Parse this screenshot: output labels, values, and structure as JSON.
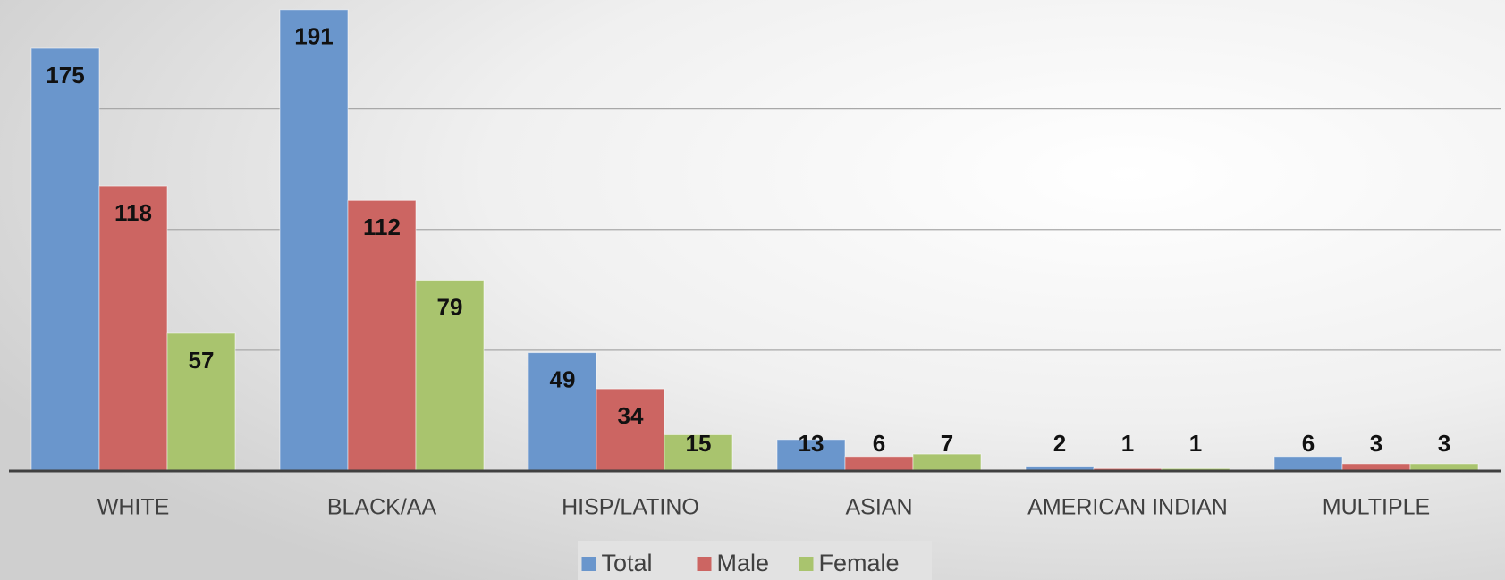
{
  "chart_data": {
    "type": "bar",
    "categories": [
      "WHITE",
      "BLACK/AA",
      "HISP/LATINO",
      "ASIAN",
      "AMERICAN INDIAN",
      "MULTIPLE"
    ],
    "series": [
      {
        "name": "Total",
        "color": "#6a96cc",
        "values": [
          175,
          191,
          49,
          13,
          2,
          6
        ]
      },
      {
        "name": "Male",
        "color": "#cc6562",
        "values": [
          118,
          112,
          34,
          6,
          1,
          3
        ]
      },
      {
        "name": "Female",
        "color": "#a9c46e",
        "values": [
          57,
          79,
          15,
          7,
          1,
          3
        ]
      }
    ],
    "ylim": [
      0,
      195
    ],
    "yticks": [
      0,
      50,
      100,
      150
    ],
    "grid": true,
    "legend": "bottom"
  }
}
